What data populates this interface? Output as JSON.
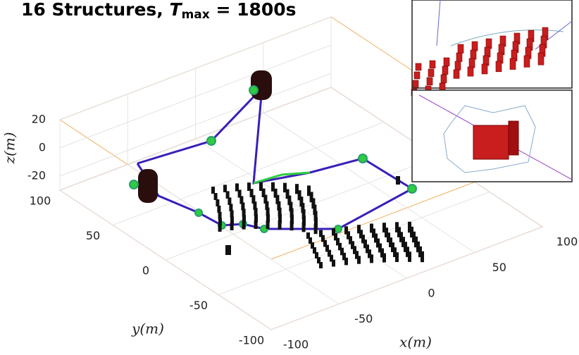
{
  "chart_data": {
    "type": "scatter3d",
    "title": {
      "lead": "16 Structures, ",
      "symbol": "T",
      "subscript": "max",
      "tail": " = 1800s"
    },
    "xlabel": "x(m)",
    "ylabel": "y(m)",
    "zlabel": "z(m)",
    "xlim": [
      -100,
      100
    ],
    "ylim": [
      -100,
      100
    ],
    "zlim": [
      -30,
      20
    ],
    "xticks": [
      -100,
      -50,
      0,
      50,
      100
    ],
    "yticks": [
      -100,
      -50,
      0,
      50,
      100
    ],
    "zticks": [
      -20,
      0,
      20
    ],
    "grid": true
  }
}
